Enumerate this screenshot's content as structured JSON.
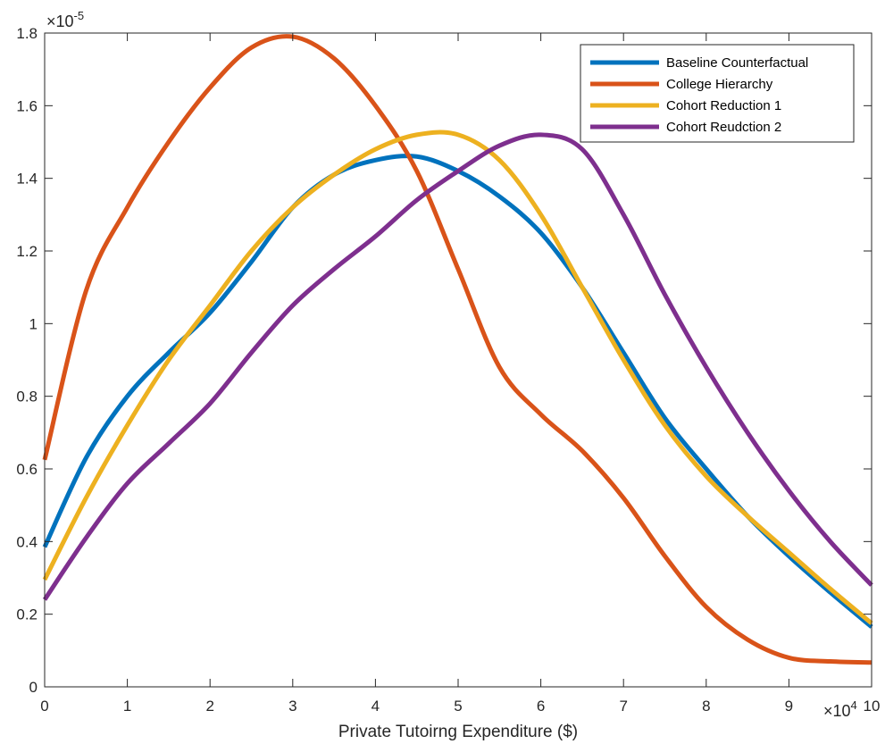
{
  "chart_data": {
    "type": "line",
    "xlabel": "Private Tutoirng Expenditure ($)",
    "ylabel": "",
    "title": "",
    "x_multiplier": "×10",
    "x_multiplier_exp": "4",
    "y_multiplier": "×10",
    "y_multiplier_exp": "-5",
    "xlim": [
      0,
      10
    ],
    "ylim": [
      0,
      1.8
    ],
    "xticks": [
      0,
      1,
      2,
      3,
      4,
      5,
      6,
      7,
      8,
      9,
      10
    ],
    "yticks": [
      0,
      0.2,
      0.4,
      0.6,
      0.8,
      1,
      1.2,
      1.4,
      1.6,
      1.8
    ],
    "xtick_labels": [
      "0",
      "1",
      "2",
      "3",
      "4",
      "5",
      "6",
      "7",
      "8",
      "9",
      "10"
    ],
    "ytick_labels": [
      "0",
      "0.2",
      "0.4",
      "0.6",
      "0.8",
      "1",
      "1.2",
      "1.4",
      "1.6",
      "1.8"
    ],
    "grid": false,
    "legend_position": "top-right",
    "series": [
      {
        "name": "Baseline Counterfactual",
        "color": "#0072BD",
        "x": [
          0,
          0.5,
          1,
          1.5,
          2,
          2.5,
          3,
          3.5,
          4,
          4.5,
          5,
          5.5,
          6,
          6.5,
          7,
          7.5,
          8,
          8.5,
          9,
          9.5,
          10
        ],
        "y": [
          0.385,
          0.63,
          0.8,
          0.92,
          1.03,
          1.17,
          1.32,
          1.41,
          1.45,
          1.46,
          1.42,
          1.35,
          1.25,
          1.1,
          0.92,
          0.74,
          0.6,
          0.47,
          0.36,
          0.26,
          0.165
        ]
      },
      {
        "name": "College Hierarchy",
        "color": "#D95319",
        "x": [
          0,
          0.5,
          1,
          1.5,
          2,
          2.5,
          3,
          3.5,
          4,
          4.5,
          5,
          5.5,
          6,
          6.5,
          7,
          7.5,
          8,
          8.5,
          9,
          9.5,
          10
        ],
        "y": [
          0.625,
          1.09,
          1.32,
          1.5,
          1.65,
          1.76,
          1.79,
          1.73,
          1.6,
          1.42,
          1.15,
          0.88,
          0.75,
          0.65,
          0.52,
          0.36,
          0.22,
          0.13,
          0.08,
          0.07,
          0.067
        ]
      },
      {
        "name": "Cohort Reduction 1",
        "color": "#EDB120",
        "x": [
          0,
          0.5,
          1,
          1.5,
          2,
          2.5,
          3,
          3.5,
          4,
          4.5,
          5,
          5.5,
          6,
          6.5,
          7,
          7.5,
          8,
          8.5,
          9,
          9.5,
          10
        ],
        "y": [
          0.295,
          0.52,
          0.72,
          0.9,
          1.05,
          1.2,
          1.32,
          1.41,
          1.48,
          1.52,
          1.52,
          1.45,
          1.3,
          1.1,
          0.9,
          0.72,
          0.58,
          0.47,
          0.37,
          0.27,
          0.175
        ]
      },
      {
        "name": "Cohort Reudction 2",
        "color": "#7E2F8E",
        "x": [
          0,
          0.5,
          1,
          1.5,
          2,
          2.5,
          3,
          3.5,
          4,
          4.5,
          5,
          5.5,
          6,
          6.5,
          7,
          7.5,
          8,
          8.5,
          9,
          9.5,
          10
        ],
        "y": [
          0.24,
          0.41,
          0.56,
          0.67,
          0.78,
          0.92,
          1.05,
          1.15,
          1.24,
          1.34,
          1.42,
          1.49,
          1.52,
          1.48,
          1.3,
          1.08,
          0.88,
          0.7,
          0.54,
          0.4,
          0.28
        ]
      }
    ]
  }
}
